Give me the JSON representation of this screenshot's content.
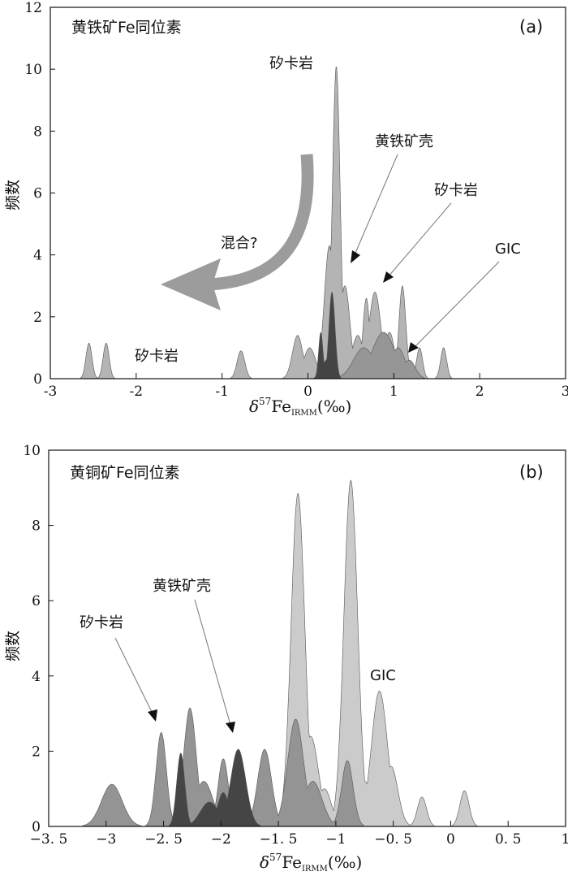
{
  "chart_data": [
    {
      "panel": "a",
      "type": "area",
      "panel_tag": "(a)",
      "title": "黄铁矿Fe同位素",
      "xlabel": "δ57Fe_IRMM(‰)",
      "xlabel_parts": {
        "delta": "δ",
        "sup": "57",
        "main": "Fe",
        "sub": "IRMM",
        "unit": "(‰)"
      },
      "ylabel": "频数",
      "xlim": [
        -3,
        3
      ],
      "ylim": [
        0,
        12
      ],
      "x_ticks": [
        "-3",
        "-2",
        "-1",
        "0",
        "1",
        "2",
        "3"
      ],
      "y_ticks": [
        "0",
        "2",
        "4",
        "6",
        "8",
        "10",
        "12"
      ],
      "series": [
        {
          "role": "skarn",
          "color": "#b4b4b4",
          "peaks": [
            [
              -2.55,
              1.15,
              0.035
            ],
            [
              -2.35,
              1.15,
              0.035
            ],
            [
              -0.78,
              0.9,
              0.045
            ],
            [
              -0.12,
              1.4,
              0.06
            ],
            [
              0.02,
              1.0,
              0.07
            ],
            [
              0.25,
              4.3,
              0.06
            ],
            [
              0.33,
              10.1,
              0.045
            ],
            [
              0.43,
              3.0,
              0.06
            ],
            [
              0.58,
              1.4,
              0.07
            ],
            [
              0.68,
              2.6,
              0.04
            ],
            [
              0.78,
              2.8,
              0.07
            ],
            [
              0.95,
              1.5,
              0.06
            ],
            [
              1.1,
              3.0,
              0.04
            ],
            [
              1.3,
              1.0,
              0.035
            ],
            [
              1.58,
              1.0,
              0.035
            ]
          ]
        },
        {
          "role": "gic",
          "color": "#969696",
          "peaks": [
            [
              0.65,
              1.0,
              0.12
            ],
            [
              0.88,
              1.5,
              0.13
            ],
            [
              1.05,
              1.0,
              0.08
            ],
            [
              1.18,
              0.6,
              0.07
            ]
          ]
        },
        {
          "role": "pyrite-shell",
          "color": "#444444",
          "peaks": [
            [
              0.15,
              1.5,
              0.025
            ],
            [
              0.28,
              2.8,
              0.035
            ],
            [
              0.22,
              0.6,
              0.06
            ]
          ]
        }
      ],
      "annotations": [
        "矽卡岩",
        "黄铁矿壳",
        "矽卡岩",
        "GIC",
        "矽卡岩",
        "混合?"
      ]
    },
    {
      "panel": "b",
      "type": "area",
      "panel_tag": "(b)",
      "title": "黄铜矿Fe同位素",
      "xlabel": "δ57Fe_IRMM(‰)",
      "xlabel_parts": {
        "delta": "δ",
        "sup": "57",
        "main": "Fe",
        "sub": "IRMM",
        "unit": "(‰)"
      },
      "ylabel": "频数",
      "xlim": [
        -3.5,
        1
      ],
      "ylim": [
        0,
        10
      ],
      "x_ticks": [
        "−3. 5",
        "−3",
        "−2. 5",
        "−2",
        "−1. 5",
        "−1",
        "−0. 5",
        "0",
        "0. 5",
        "1"
      ],
      "y_ticks": [
        "0",
        "2",
        "4",
        "6",
        "8",
        "10"
      ],
      "series": [
        {
          "role": "gic",
          "color": "#cbcbcb",
          "peaks": [
            [
              -1.33,
              8.85,
              0.06
            ],
            [
              -1.22,
              2.4,
              0.07
            ],
            [
              -1.1,
              1.0,
              0.06
            ],
            [
              -0.87,
              9.2,
              0.06
            ],
            [
              -0.75,
              1.2,
              0.06
            ],
            [
              -0.62,
              3.6,
              0.07
            ],
            [
              -0.52,
              1.6,
              0.06
            ],
            [
              -0.25,
              0.78,
              0.04
            ],
            [
              0.12,
              0.95,
              0.04
            ]
          ]
        },
        {
          "role": "skarn",
          "color": "#949494",
          "peaks": [
            [
              -2.95,
              1.12,
              0.09
            ],
            [
              -2.52,
              2.5,
              0.045
            ],
            [
              -2.27,
              3.15,
              0.055
            ],
            [
              -2.15,
              1.2,
              0.08
            ],
            [
              -1.98,
              1.8,
              0.045
            ],
            [
              -1.62,
              2.05,
              0.06
            ],
            [
              -1.35,
              2.85,
              0.07
            ],
            [
              -1.2,
              1.2,
              0.08
            ],
            [
              -0.9,
              1.75,
              0.05
            ]
          ]
        },
        {
          "role": "pyrite-shell",
          "color": "#454545",
          "peaks": [
            [
              -2.35,
              1.95,
              0.035
            ],
            [
              -2.1,
              0.65,
              0.08
            ],
            [
              -1.85,
              2.05,
              0.065
            ],
            [
              -1.98,
              0.9,
              0.05
            ]
          ]
        }
      ],
      "annotations": [
        "矽卡岩",
        "黄铁矿壳",
        "GIC"
      ]
    }
  ]
}
